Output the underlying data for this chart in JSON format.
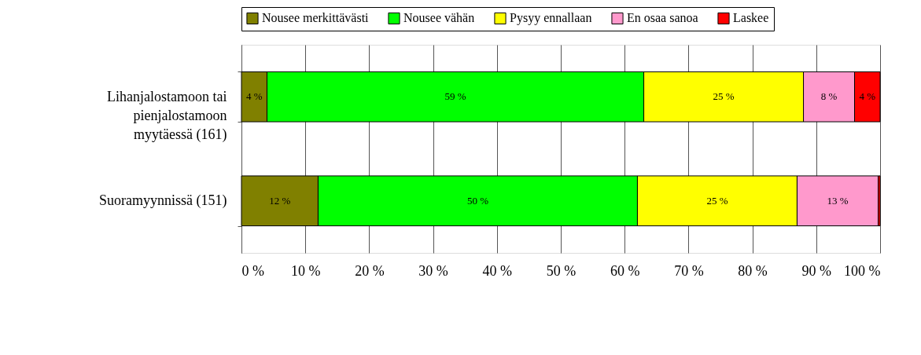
{
  "chart_data": {
    "type": "bar",
    "orientation": "horizontal",
    "stacked": true,
    "categories": [
      "Lihanjalostamoon tai pienjalostamoon myytäessä (161)",
      "Suoramyynnissä (151)"
    ],
    "series": [
      {
        "name": "Nousee merkittävästi",
        "color": "#808000",
        "values": [
          4,
          12
        ],
        "value_labels": [
          "4 %",
          "12 %"
        ]
      },
      {
        "name": "Nousee vähän",
        "color": "#00ff00",
        "values": [
          59,
          50
        ],
        "value_labels": [
          "59 %",
          "50 %"
        ]
      },
      {
        "name": "Pysyy ennallaan",
        "color": "#ffff00",
        "values": [
          25,
          25
        ],
        "value_labels": [
          "25 %",
          "25 %"
        ]
      },
      {
        "name": "En osaa sanoa",
        "color": "#ff99cc",
        "values": [
          8,
          12.7
        ],
        "value_labels": [
          "8 %",
          "13 %"
        ]
      },
      {
        "name": "Laskee",
        "color": "#ff0000",
        "values": [
          4,
          0.3
        ],
        "value_labels": [
          "4 %",
          null
        ]
      }
    ],
    "xlim": [
      0,
      100
    ],
    "xticks": [
      {
        "value": 0,
        "label": "0 %"
      },
      {
        "value": 10,
        "label": "10 %"
      },
      {
        "value": 20,
        "label": "20 %"
      },
      {
        "value": 30,
        "label": "30 %"
      },
      {
        "value": 40,
        "label": "40 %"
      },
      {
        "value": 50,
        "label": "50 %"
      },
      {
        "value": 60,
        "label": "60 %"
      },
      {
        "value": 70,
        "label": "70 %"
      },
      {
        "value": 80,
        "label": "80 %"
      },
      {
        "value": 90,
        "label": "90 %"
      },
      {
        "value": 100,
        "label": "100 %"
      }
    ],
    "grid": "x",
    "legend": "top"
  }
}
